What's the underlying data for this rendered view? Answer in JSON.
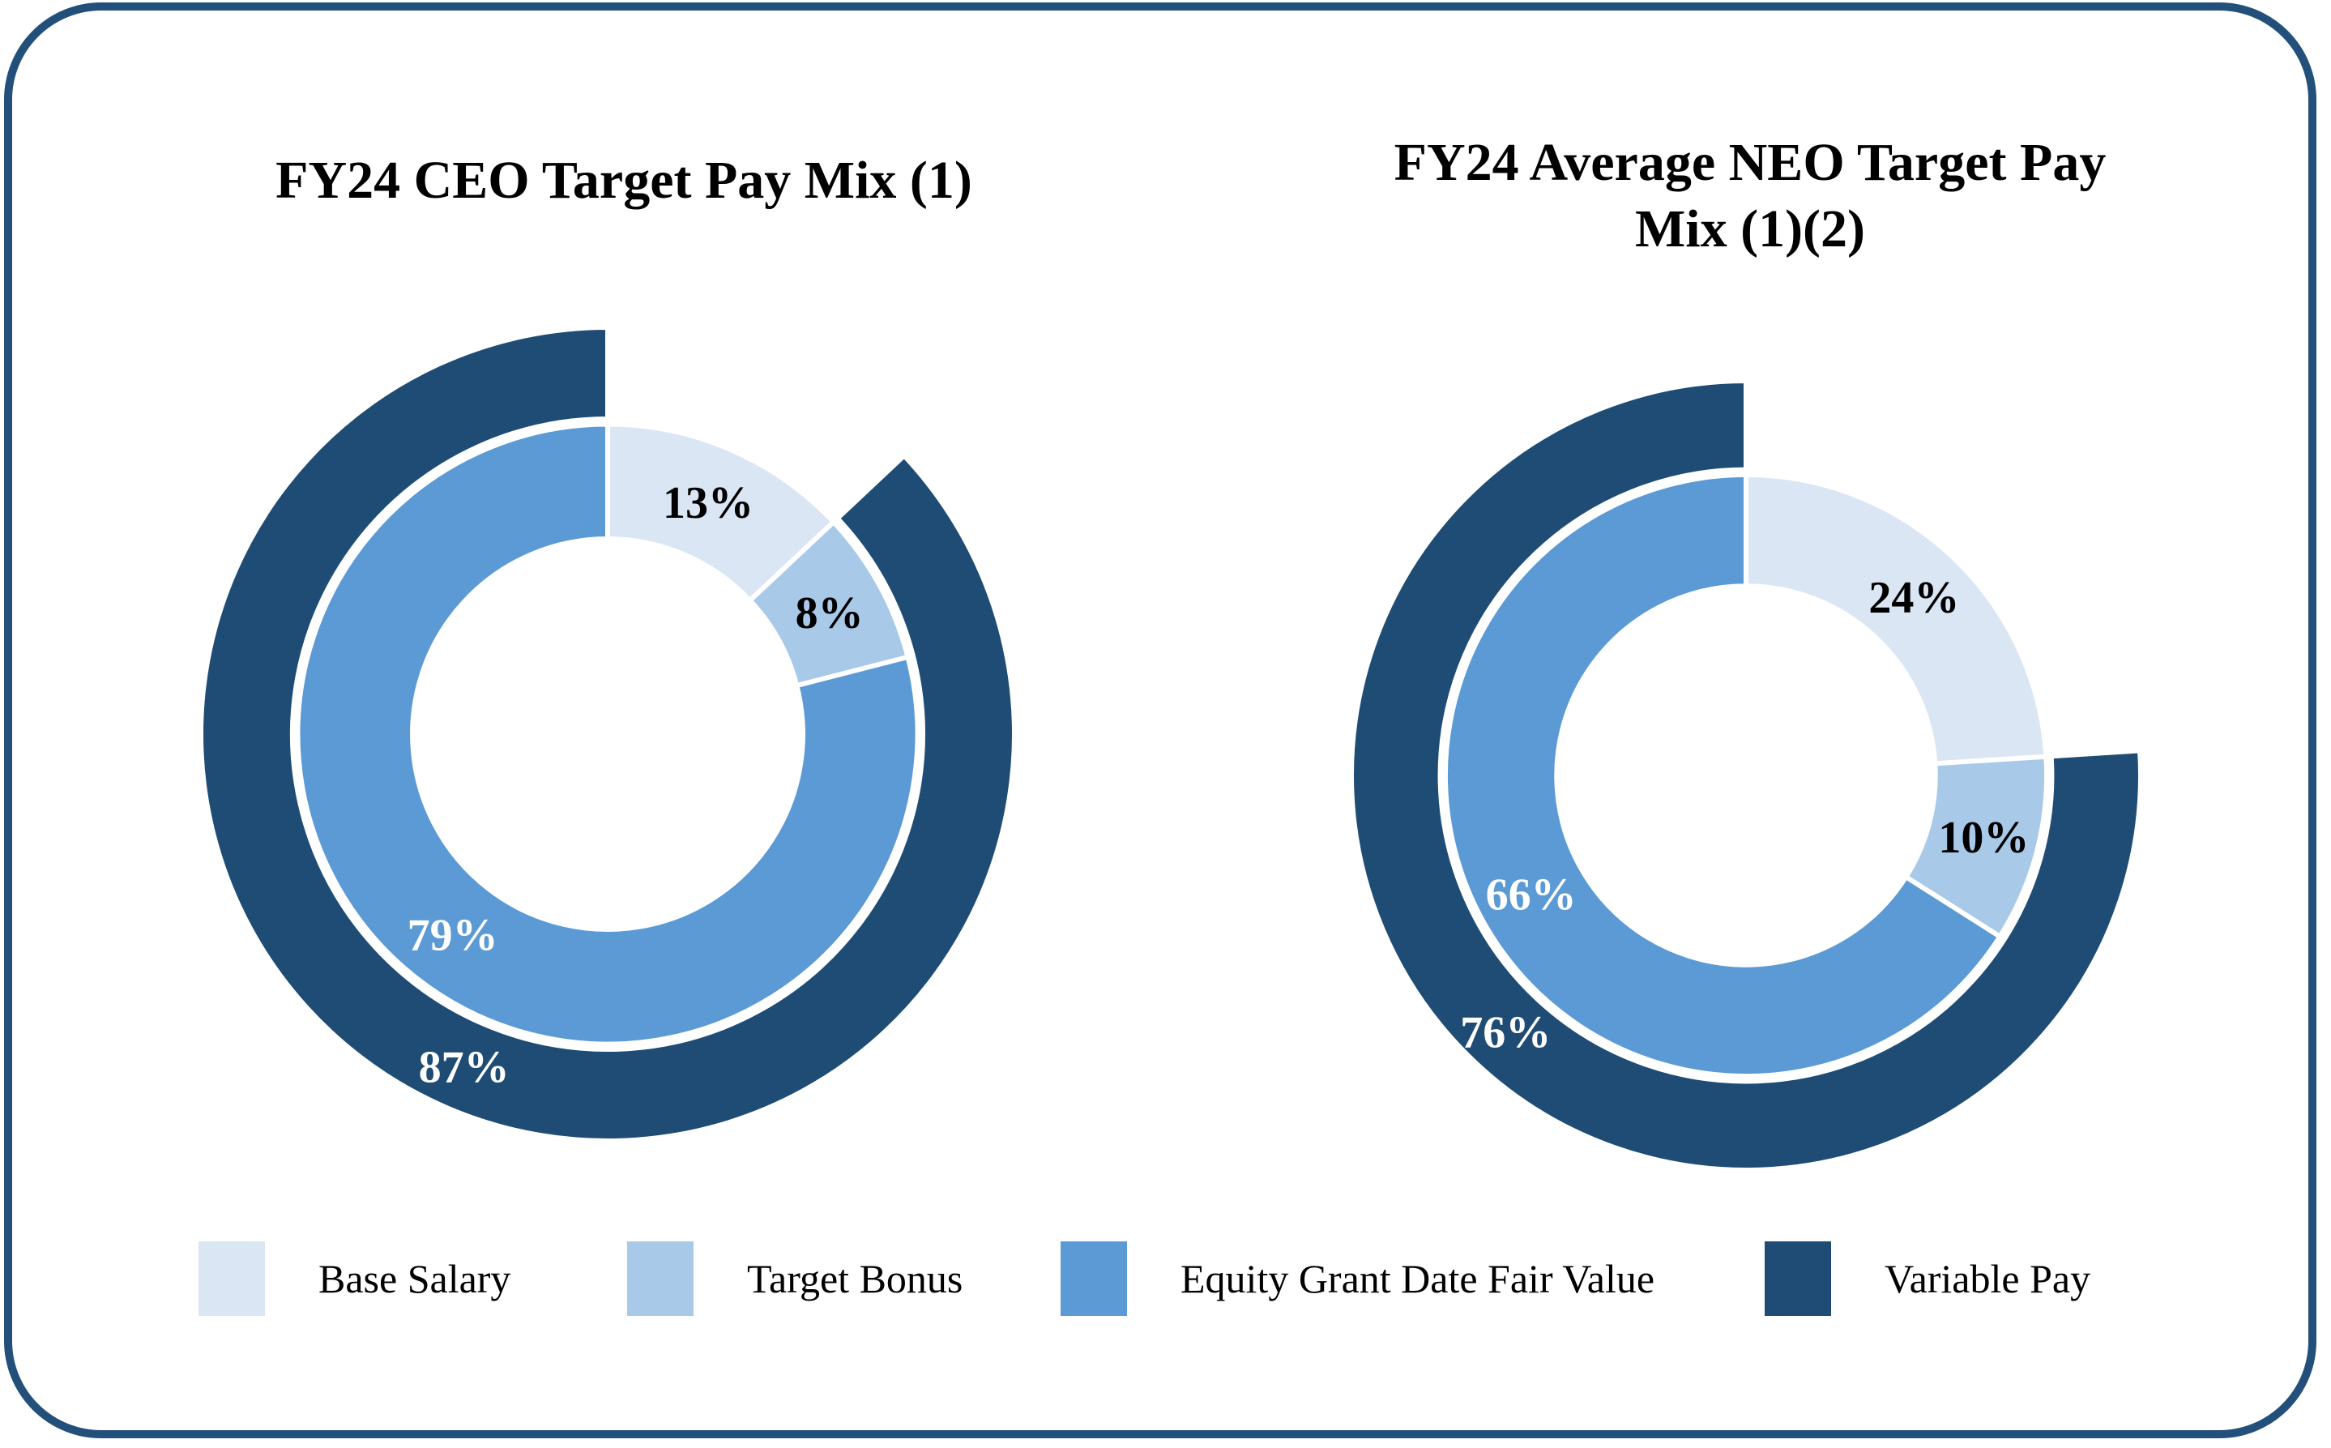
{
  "frame": {
    "border_color": "#23507B"
  },
  "colors": {
    "base_salary": "#DBE6F4",
    "target_bonus": "#A9C9E9",
    "equity": "#5B9AD4",
    "variable_pay": "#1F4C74",
    "label_dark": "#000000",
    "label_light": "#FFFFFF"
  },
  "chart_data": [
    {
      "type": "donut",
      "title": "FY24 CEO Target Pay Mix (1)",
      "title_lines": [
        "FY24 CEO Target Pay Mix (1)"
      ],
      "inner_ring": {
        "categories": [
          "Base Salary",
          "Target Bonus",
          "Equity Grant Date Fair Value"
        ],
        "values": [
          13,
          8,
          79
        ],
        "labels": [
          "13%",
          "8%",
          "79%"
        ],
        "colors": [
          "base_salary",
          "target_bonus",
          "equity"
        ],
        "label_colors": [
          "#000000",
          "#000000",
          "#FFFFFF"
        ]
      },
      "outer_ring": {
        "category": "Variable Pay",
        "value": 87,
        "label": "87%",
        "color": "variable_pay",
        "label_color": "#FFFFFF",
        "gap_over_category": "Base Salary"
      },
      "legend_position": "bottom",
      "start_angle_deg": 0,
      "direction": "clockwise"
    },
    {
      "type": "donut",
      "title": "FY24 Average NEO Target Pay Mix (1)(2)",
      "title_lines": [
        "FY24 Average NEO Target Pay",
        "Mix (1)(2)"
      ],
      "inner_ring": {
        "categories": [
          "Base Salary",
          "Target Bonus",
          "Equity Grant Date Fair Value"
        ],
        "values": [
          24,
          10,
          66
        ],
        "labels": [
          "24%",
          "10%",
          "66%"
        ],
        "colors": [
          "base_salary",
          "target_bonus",
          "equity"
        ],
        "label_colors": [
          "#000000",
          "#000000",
          "#FFFFFF"
        ]
      },
      "outer_ring": {
        "category": "Variable Pay",
        "value": 76,
        "label": "76%",
        "color": "variable_pay",
        "label_color": "#FFFFFF",
        "gap_over_category": "Base Salary"
      },
      "legend_position": "bottom",
      "start_angle_deg": 0,
      "direction": "clockwise"
    }
  ],
  "legend": {
    "items": [
      {
        "label": "Base Salary",
        "color": "base_salary"
      },
      {
        "label": "Target Bonus",
        "color": "target_bonus"
      },
      {
        "label": "Equity Grant Date Fair Value",
        "color": "equity"
      },
      {
        "label": "Variable Pay",
        "color": "variable_pay"
      }
    ]
  }
}
